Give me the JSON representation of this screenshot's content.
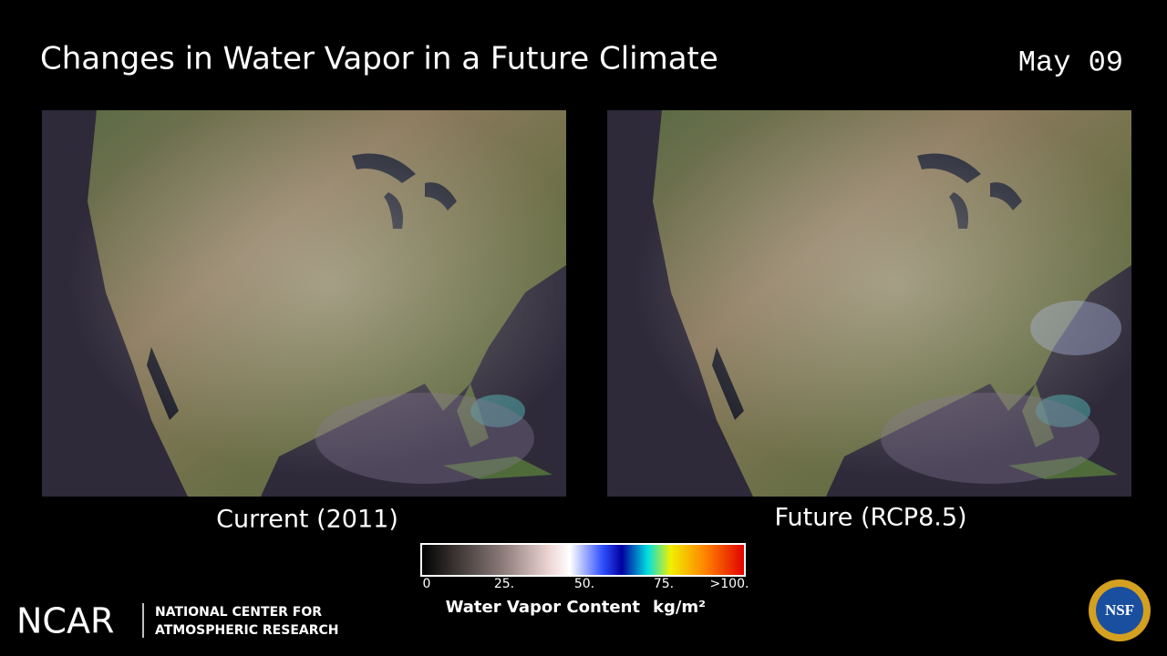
{
  "header": {
    "title": "Changes in Water Vapor in a Future Climate",
    "date": "May 09"
  },
  "panels": [
    {
      "caption": "Current (2011)"
    },
    {
      "caption": "Future (RCP8.5)"
    }
  ],
  "colorbar": {
    "ticks": [
      "0",
      "25.",
      "50.",
      "75.",
      ">100."
    ],
    "label": "Water Vapor Content",
    "unit": "kg/m²"
  },
  "footer": {
    "logo": "NCAR",
    "org_line1": "NATIONAL CENTER FOR",
    "org_line2": "ATMOSPHERIC RESEARCH",
    "badge": "NSF"
  }
}
